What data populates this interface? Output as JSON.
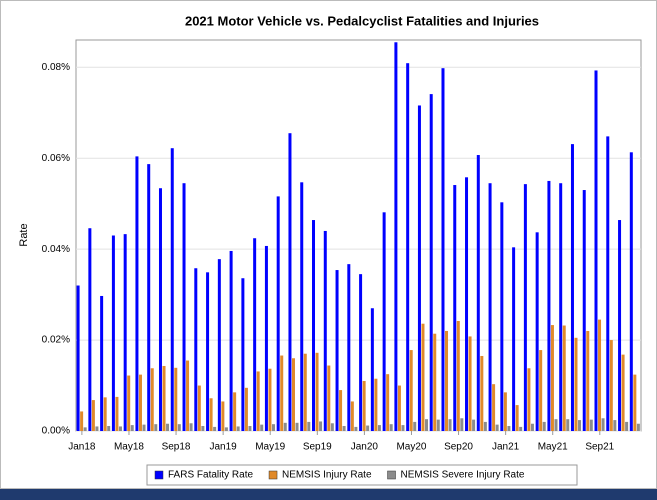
{
  "chart_data": {
    "type": "bar",
    "title": "2021 Motor Vehicle vs. Pedalcyclist Fatalities and Injuries",
    "ylabel": "Rate",
    "categories": [
      "Jan18",
      null,
      null,
      null,
      "May18",
      null,
      null,
      null,
      "Sep18",
      null,
      null,
      null,
      "Jan19",
      null,
      null,
      null,
      "May19",
      null,
      null,
      null,
      "Sep19",
      null,
      null,
      null,
      "Jan20",
      null,
      null,
      null,
      "May20",
      null,
      null,
      null,
      "Sep20",
      null,
      null,
      null,
      "Jan21",
      null,
      null,
      null,
      "May21",
      null,
      null,
      null,
      "Sep21",
      null,
      null,
      null
    ],
    "series": [
      {
        "name": "FARS Fatality Rate",
        "color": "#0000ff",
        "values": [
          0.032,
          0.0446,
          0.0297,
          0.043,
          0.0433,
          0.0604,
          0.0587,
          0.0534,
          0.0622,
          0.0545,
          0.0358,
          0.0349,
          0.0378,
          0.0396,
          0.0336,
          0.0424,
          0.0407,
          0.0516,
          0.0655,
          0.0547,
          0.0464,
          0.044,
          0.0354,
          0.0367,
          0.0345,
          0.027,
          0.0481,
          0.0855,
          0.0809,
          0.0716,
          0.0741,
          0.0798,
          0.0541,
          0.0558,
          0.0607,
          0.0545,
          0.0503,
          0.0404,
          0.0543,
          0.0437,
          0.055,
          0.0545,
          0.0631,
          0.053,
          0.0793,
          0.0648,
          0.0464,
          0.0613
        ]
      },
      {
        "name": "NEMSIS Injury Rate",
        "color": "#e08a2a",
        "values": [
          0.0043,
          0.0068,
          0.0074,
          0.0075,
          0.0122,
          0.0124,
          0.0138,
          0.0143,
          0.0139,
          0.0155,
          0.01,
          0.0072,
          0.0065,
          0.0085,
          0.0095,
          0.0131,
          0.0137,
          0.0166,
          0.016,
          0.017,
          0.0172,
          0.0144,
          0.009,
          0.0065,
          0.011,
          0.0115,
          0.0125,
          0.01,
          0.0178,
          0.0236,
          0.0214,
          0.022,
          0.0242,
          0.0208,
          0.0165,
          0.0103,
          0.0085,
          0.0057,
          0.0138,
          0.0178,
          0.0233,
          0.0232,
          0.0205,
          0.022,
          0.0245,
          0.02,
          0.0168,
          0.0124
        ]
      },
      {
        "name": "NEMSIS Severe Injury Rate",
        "color": "#8c8c8c",
        "values": [
          0.0008,
          0.001,
          0.0011,
          0.001,
          0.0013,
          0.0014,
          0.0015,
          0.0016,
          0.0015,
          0.0017,
          0.0011,
          0.0009,
          0.0008,
          0.001,
          0.0011,
          0.0014,
          0.0015,
          0.0018,
          0.0018,
          0.002,
          0.0021,
          0.0017,
          0.0011,
          0.0009,
          0.0012,
          0.0013,
          0.0015,
          0.0013,
          0.002,
          0.0026,
          0.0025,
          0.0026,
          0.0028,
          0.0025,
          0.002,
          0.0014,
          0.0011,
          0.0009,
          0.0016,
          0.002,
          0.0026,
          0.0026,
          0.0024,
          0.0025,
          0.0028,
          0.0024,
          0.002,
          0.0016
        ]
      }
    ],
    "ylim": [
      0,
      0.086
    ],
    "yticks": [
      {
        "value": 0,
        "label": "0.00%"
      },
      {
        "value": 0.02,
        "label": "0.02%"
      },
      {
        "value": 0.04,
        "label": "0.04%"
      },
      {
        "value": 0.06,
        "label": "0.06%"
      },
      {
        "value": 0.08,
        "label": "0.08%"
      }
    ],
    "grid": true,
    "legend": "bottom"
  }
}
